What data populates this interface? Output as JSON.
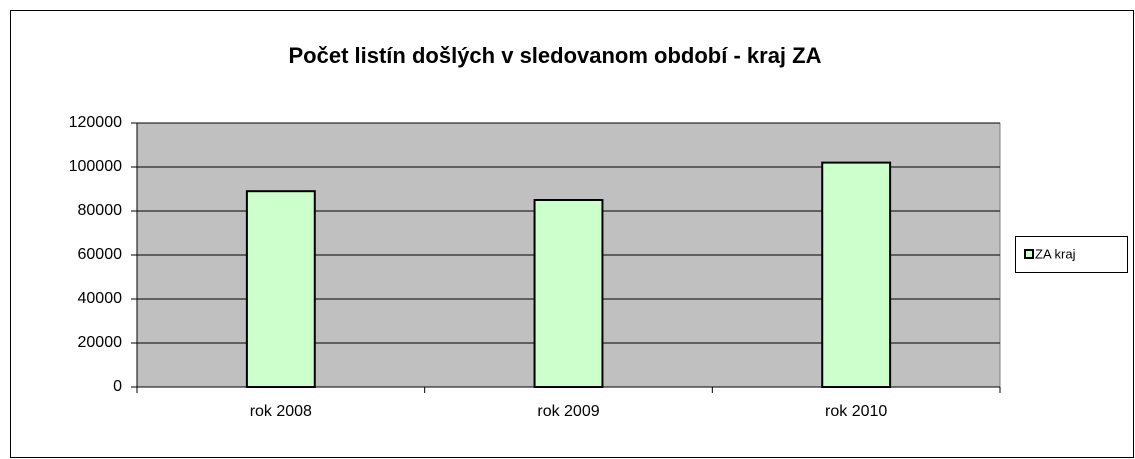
{
  "chart_data": {
    "type": "bar",
    "title": "Počet listín došlých v sledovanom období - kraj ZA",
    "categories": [
      "rok 2008",
      "rok 2009",
      "rok 2010"
    ],
    "series": [
      {
        "name": "ZA kraj",
        "color": "#ccffcc",
        "values": [
          89000,
          85000,
          102000
        ]
      }
    ],
    "ylim": [
      0,
      120000
    ],
    "yticks": [
      0,
      20000,
      40000,
      60000,
      80000,
      100000,
      120000
    ],
    "grid": true,
    "legend": "right"
  }
}
